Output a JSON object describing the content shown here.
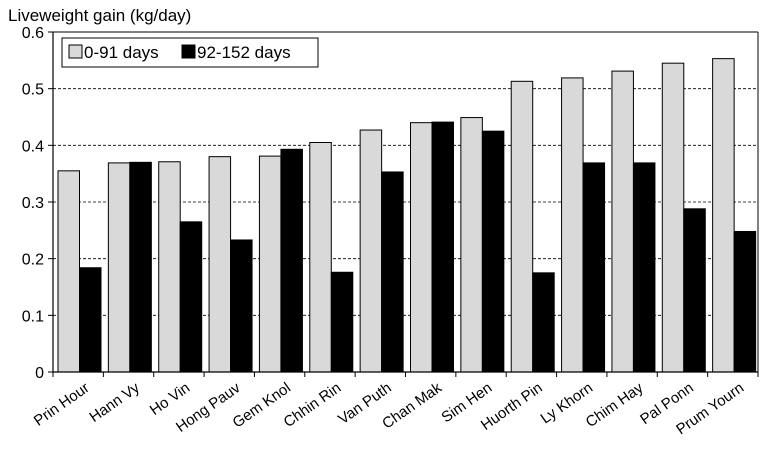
{
  "chart_data": {
    "type": "bar",
    "ylabel": "Liveweight gain (kg/day)",
    "xlabel": "",
    "ylim": [
      0,
      0.6
    ],
    "yticks": [
      "0",
      "0.1",
      "0.2",
      "0.3",
      "0.4",
      "0.5",
      "0.6"
    ],
    "grid": "horizontal dashed",
    "legend_position": "top-left",
    "categories": [
      "Prin Hour",
      "Hann Vy",
      "Ho Vin",
      "Hong Pauv",
      "Gem Knol",
      "Chhin Rin",
      "Van Puth",
      "Chan Mak",
      "Sim  Hen",
      "Huorth Pin",
      "Ly Khorn",
      "Chim Hay",
      "Pal Ponn",
      "Prum  Yourn"
    ],
    "series": [
      {
        "name": "0-91 days",
        "color": "#d9d9d9",
        "values": [
          0.355,
          0.369,
          0.371,
          0.38,
          0.381,
          0.405,
          0.427,
          0.44,
          0.449,
          0.513,
          0.519,
          0.531,
          0.545,
          0.553
        ]
      },
      {
        "name": "92-152 days",
        "color": "#000000",
        "values": [
          0.184,
          0.37,
          0.265,
          0.233,
          0.393,
          0.176,
          0.353,
          0.441,
          0.425,
          0.175,
          0.369,
          0.369,
          0.288,
          0.248
        ]
      }
    ]
  }
}
